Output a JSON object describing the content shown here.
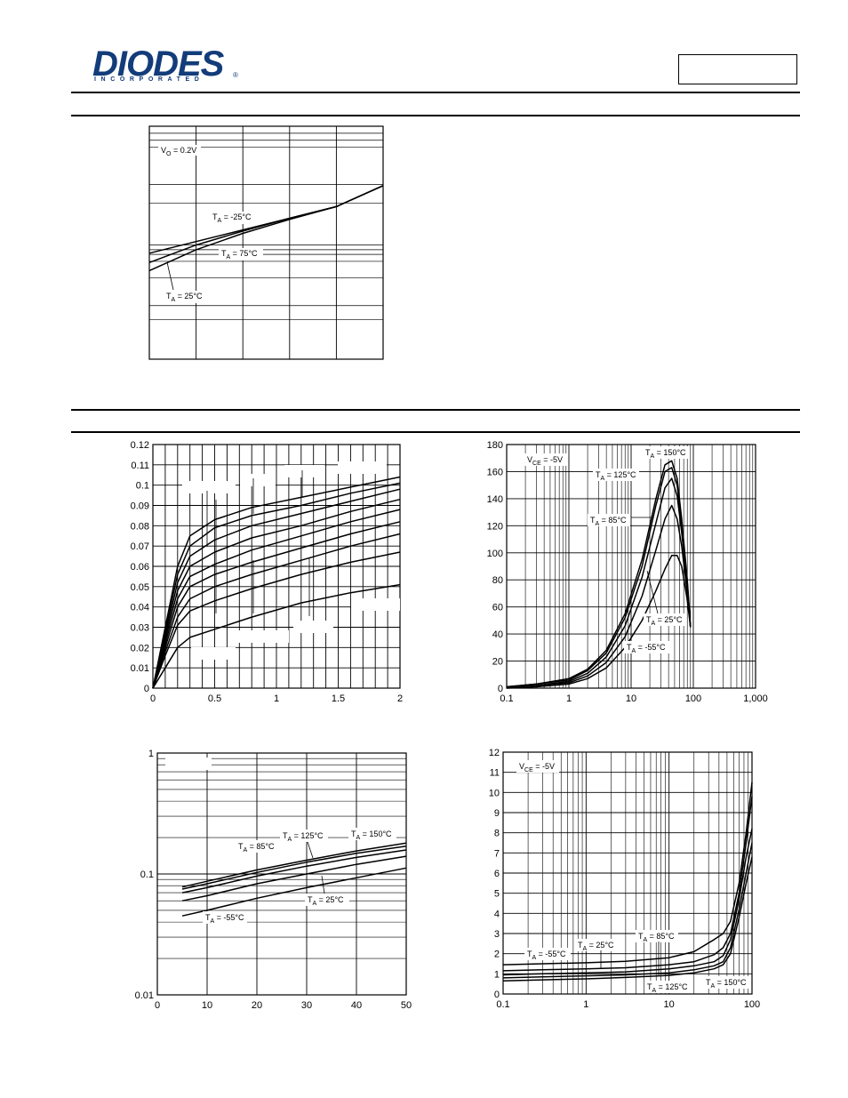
{
  "header": {
    "logo_text": "DIODES",
    "logo_subtext": "INCORPORATED",
    "logo_registered": "®",
    "part_number_box": ""
  },
  "colors": {
    "brand": "#123c7a",
    "ink": "#000000"
  },
  "chart_data": [
    {
      "id": "fig-top",
      "type": "line",
      "x": [
        0,
        1,
        2,
        3,
        4,
        5
      ],
      "xlim": [
        0,
        5
      ],
      "ylim": [
        0,
        1
      ],
      "series": [
        {
          "name": "TA = -25°C",
          "values": [
            0.455,
            0.505,
            0.555,
            0.605,
            0.655,
            0.745
          ]
        },
        {
          "name": "TA = 75°C",
          "values": [
            0.415,
            0.49,
            0.55,
            0.605,
            0.655,
            0.745
          ]
        },
        {
          "name": "TA = 25°C",
          "values": [
            0.38,
            0.47,
            0.54,
            0.6,
            0.655,
            0.745
          ]
        }
      ],
      "annotations": [
        {
          "sub": "O",
          "prefix": "V",
          "text": " = 0.2V"
        },
        {
          "sub": "A",
          "prefix": "T",
          "text": " = -25°C"
        },
        {
          "sub": "A",
          "prefix": "T",
          "text": " = 75°C"
        },
        {
          "sub": "A",
          "prefix": "T",
          "text": " = 25°C"
        }
      ]
    },
    {
      "id": "fig-mid-left",
      "type": "line",
      "xlim": [
        0,
        2
      ],
      "ylim": [
        0,
        0.12
      ],
      "x_ticks": [
        "0",
        "0.5",
        "1",
        "1.5",
        "2"
      ],
      "y_ticks": [
        "0",
        "0.01",
        "0.02",
        "0.03",
        "0.04",
        "0.05",
        "0.06",
        "0.07",
        "0.08",
        "0.09",
        "0.1",
        "0.11",
        "0.12"
      ],
      "x": [
        0,
        0.1,
        0.2,
        0.3,
        0.5,
        0.8,
        1.2,
        1.6,
        2.0
      ],
      "series": [
        {
          "values": [
            0,
            0.03,
            0.06,
            0.075,
            0.083,
            0.089,
            0.094,
            0.099,
            0.104
          ]
        },
        {
          "values": [
            0,
            0.028,
            0.056,
            0.07,
            0.079,
            0.085,
            0.09,
            0.096,
            0.101
          ]
        },
        {
          "values": [
            0,
            0.026,
            0.052,
            0.065,
            0.073,
            0.08,
            0.086,
            0.092,
            0.098
          ]
        },
        {
          "values": [
            0,
            0.024,
            0.048,
            0.06,
            0.067,
            0.074,
            0.08,
            0.087,
            0.093
          ]
        },
        {
          "values": [
            0,
            0.022,
            0.044,
            0.055,
            0.061,
            0.068,
            0.075,
            0.082,
            0.088
          ]
        },
        {
          "values": [
            0,
            0.02,
            0.04,
            0.05,
            0.056,
            0.062,
            0.069,
            0.076,
            0.082
          ]
        },
        {
          "values": [
            0,
            0.018,
            0.035,
            0.044,
            0.05,
            0.056,
            0.063,
            0.07,
            0.076
          ]
        },
        {
          "values": [
            0,
            0.016,
            0.031,
            0.038,
            0.043,
            0.049,
            0.056,
            0.062,
            0.067
          ]
        },
        {
          "values": [
            0,
            0.01,
            0.02,
            0.025,
            0.029,
            0.035,
            0.042,
            0.047,
            0.051
          ]
        }
      ]
    },
    {
      "id": "fig-mid-right",
      "type": "line",
      "log_x": true,
      "xlim": [
        0.1,
        1000
      ],
      "ylim": [
        0,
        180
      ],
      "x_ticks": [
        "0.1",
        "1",
        "10",
        "100",
        "1,000"
      ],
      "y_ticks": [
        "0",
        "20",
        "40",
        "60",
        "80",
        "100",
        "120",
        "140",
        "160",
        "180"
      ],
      "x": [
        0.1,
        0.3,
        1,
        2,
        4,
        8,
        15,
        25,
        35,
        45,
        55,
        65,
        80,
        90
      ],
      "series": [
        {
          "name": "TA = 150°C",
          "values": [
            1,
            3,
            7,
            14,
            28,
            55,
            95,
            140,
            165,
            168,
            155,
            125,
            80,
            45
          ]
        },
        {
          "name": "TA = 125°C",
          "values": [
            1,
            3,
            6,
            13,
            26,
            52,
            90,
            135,
            160,
            163,
            150,
            120,
            78,
            45
          ]
        },
        {
          "name": "TA = 85°C",
          "values": [
            1,
            2,
            5,
            11,
            23,
            46,
            82,
            122,
            148,
            155,
            142,
            115,
            75,
            45
          ]
        },
        {
          "name": "TA = 25°C",
          "values": [
            1,
            2,
            4,
            9,
            19,
            38,
            68,
            102,
            125,
            135,
            125,
            105,
            70,
            45
          ]
        },
        {
          "name": "TA = -55°C",
          "values": [
            0,
            1,
            3,
            7,
            15,
            30,
            50,
            72,
            88,
            98,
            98,
            90,
            65,
            45
          ]
        }
      ],
      "annotations": [
        {
          "prefix": "V",
          "sub": "CE",
          "text": " = -5V"
        },
        {
          "prefix": "T",
          "sub": "A",
          "text": " = 150°C"
        },
        {
          "prefix": "T",
          "sub": "A",
          "text": " = 125°C"
        },
        {
          "prefix": "T",
          "sub": "A",
          "text": " = 85°C"
        },
        {
          "prefix": "T",
          "sub": "A",
          "text": " = 25°C"
        },
        {
          "prefix": "T",
          "sub": "A",
          "text": " = -55°C"
        }
      ]
    },
    {
      "id": "fig-bottom-left",
      "type": "line",
      "log_y": true,
      "xlim": [
        0,
        50
      ],
      "ylim": [
        0.01,
        1
      ],
      "x_ticks": [
        "0",
        "10",
        "20",
        "30",
        "40",
        "50"
      ],
      "y_ticks": [
        "0.01",
        "0.1",
        "1"
      ],
      "x": [
        5,
        10,
        20,
        30,
        40,
        50
      ],
      "series": [
        {
          "name": "TA = 150°C",
          "values": [
            0.078,
            0.087,
            0.108,
            0.13,
            0.155,
            0.18
          ]
        },
        {
          "name": "TA = 125°C",
          "values": [
            0.075,
            0.083,
            0.103,
            0.125,
            0.148,
            0.17
          ]
        },
        {
          "name": "TA = 85°C",
          "values": [
            0.07,
            0.077,
            0.096,
            0.116,
            0.137,
            0.158
          ]
        },
        {
          "name": "TA = 25°C",
          "values": [
            0.06,
            0.066,
            0.083,
            0.1,
            0.12,
            0.14
          ]
        },
        {
          "name": "TA = -55°C",
          "values": [
            0.045,
            0.05,
            0.063,
            0.077,
            0.093,
            0.112
          ]
        }
      ],
      "annotations": [
        {
          "prefix": "T",
          "sub": "A",
          "text": " = 85°C"
        },
        {
          "prefix": "T",
          "sub": "A",
          "text": " = 125°C"
        },
        {
          "prefix": "T",
          "sub": "A",
          "text": " = 150°C"
        },
        {
          "prefix": "T",
          "sub": "A",
          "text": " = 25°C"
        },
        {
          "prefix": "T",
          "sub": "A",
          "text": " = -55°C"
        }
      ]
    },
    {
      "id": "fig-bottom-right",
      "type": "line",
      "log_x": true,
      "xlim": [
        0.1,
        100
      ],
      "ylim": [
        0,
        12
      ],
      "x_ticks": [
        "0.1",
        "1",
        "10",
        "100"
      ],
      "y_ticks": [
        "0",
        "1",
        "2",
        "3",
        "4",
        "5",
        "6",
        "7",
        "8",
        "9",
        "10",
        "11",
        "12"
      ],
      "x": [
        0.1,
        0.3,
        1,
        3,
        10,
        20,
        35,
        45,
        55,
        70,
        85,
        100
      ],
      "series": [
        {
          "name": "TA = -55°C",
          "values": [
            1.45,
            1.5,
            1.55,
            1.62,
            1.8,
            2.1,
            2.7,
            3.0,
            3.6,
            5.5,
            8.0,
            10.5
          ]
        },
        {
          "name": "TA = 25°C",
          "values": [
            1.15,
            1.2,
            1.25,
            1.3,
            1.45,
            1.6,
            1.95,
            2.3,
            3.0,
            5.0,
            7.5,
            9.8
          ]
        },
        {
          "name": "TA = 85°C",
          "values": [
            0.95,
            1.0,
            1.05,
            1.1,
            1.25,
            1.4,
            1.6,
            1.9,
            2.7,
            4.7,
            6.8,
            8.2
          ]
        },
        {
          "name": "TA = 125°C",
          "values": [
            0.8,
            0.85,
            0.9,
            0.95,
            1.05,
            1.2,
            1.4,
            1.6,
            2.3,
            4.2,
            6.0,
            7.5
          ]
        },
        {
          "name": "TA = 150°C",
          "values": [
            0.65,
            0.7,
            0.75,
            0.82,
            0.92,
            1.05,
            1.25,
            1.45,
            2.0,
            3.8,
            5.5,
            6.8
          ]
        }
      ],
      "annotations": [
        {
          "prefix": "V",
          "sub": "CE",
          "text": " = -5V"
        },
        {
          "prefix": "T",
          "sub": "A",
          "text": " = -55°C"
        },
        {
          "prefix": "T",
          "sub": "A",
          "text": " = 25°C"
        },
        {
          "prefix": "T",
          "sub": "A",
          "text": " = 85°C"
        },
        {
          "prefix": "T",
          "sub": "A",
          "text": " = 125°C"
        },
        {
          "prefix": "T",
          "sub": "A",
          "text": " = 150°C"
        }
      ]
    }
  ]
}
